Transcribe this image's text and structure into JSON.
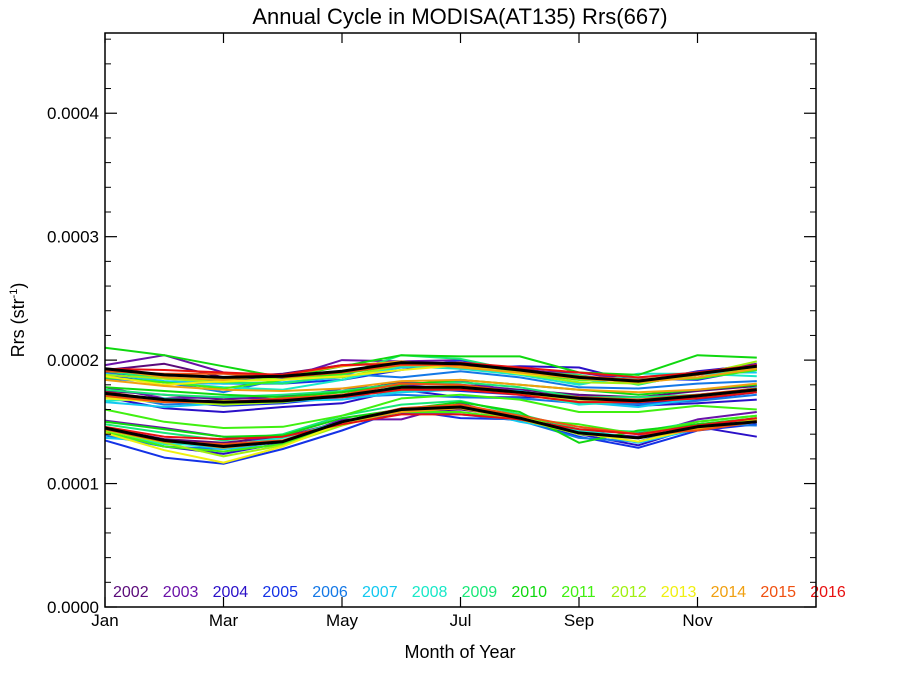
{
  "chart_data": {
    "type": "line",
    "title": "Annual Cycle in MODISA(AT135) Rrs(667)",
    "xlabel": "Month of Year",
    "ylabel": "Rrs (str",
    "ylabel_sup": "-1",
    "ylabel_close": ")",
    "x": [
      1,
      2,
      3,
      4,
      5,
      6,
      7,
      8,
      9,
      10,
      11,
      12
    ],
    "xlim": [
      1,
      13
    ],
    "ylim": [
      0.0,
      0.000465
    ],
    "x_ticks": [
      {
        "value": 1,
        "label": "Jan"
      },
      {
        "value": 3,
        "label": "Mar"
      },
      {
        "value": 5,
        "label": "May"
      },
      {
        "value": 7,
        "label": "Jul"
      },
      {
        "value": 9,
        "label": "Sep"
      },
      {
        "value": 11,
        "label": "Nov"
      }
    ],
    "y_ticks": [
      {
        "value": 0.0,
        "label": "0.0000"
      },
      {
        "value": 0.0001,
        "label": "0.0001"
      },
      {
        "value": 0.0002,
        "label": "0.0002"
      },
      {
        "value": 0.0003,
        "label": "0.0003"
      },
      {
        "value": 0.0004,
        "label": "0.0004"
      }
    ],
    "grid": false,
    "legend": "bottom",
    "series": [
      {
        "name": "2002",
        "color": "#5a0a7a",
        "values": [
          [
            0.000192,
            0.000197,
            0.000186,
            0.000189,
            0.000196,
            0.000198,
            0.000196,
            0.000193,
            0.000187,
            0.000181,
            0.000188,
            0.000194
          ],
          [
            0.000175,
            0.000172,
            0.000168,
            0.000171,
            0.000174,
            0.000182,
            0.00018,
            0.000176,
            0.000172,
            0.00017,
            0.000175,
            0.000179
          ],
          [
            0.000145,
            0.000136,
            0.000133,
            0.000138,
            0.00015,
            0.000158,
            0.00016,
            0.000154,
            0.000143,
            0.000141,
            0.000148,
            0.000152
          ]
        ]
      },
      {
        "name": "2003",
        "color": "#6a12a8",
        "values": [
          [
            0.000196,
            0.000204,
            0.00019,
            0.000185,
            0.0002,
            0.000199,
            0.0002,
            0.000191,
            0.00019,
            0.000183,
            0.00019,
            0.000197
          ],
          [
            0.000178,
            0.000169,
            0.00017,
            0.000168,
            0.000177,
            0.000179,
            0.000183,
            0.000174,
            0.000171,
            0.000167,
            0.000172,
            0.000176
          ],
          [
            0.000151,
            0.000145,
            0.000138,
            0.000134,
            0.000152,
            0.000152,
            0.000165,
            0.000152,
            0.000141,
            0.000138,
            0.000152,
            0.000158
          ]
        ]
      },
      {
        "name": "2004",
        "color": "#2a10c8",
        "values": [
          [
            0.00019,
            0.000186,
            0.000183,
            0.000187,
            0.000189,
            0.000199,
            0.000193,
            0.000195,
            0.000194,
            0.000182,
            0.000191,
            0.000196
          ],
          [
            0.00017,
            0.000161,
            0.000158,
            0.000162,
            0.000165,
            0.000176,
            0.00017,
            0.00017,
            0.00017,
            0.000163,
            0.000165,
            0.000168
          ],
          [
            0.00014,
            0.00013,
            0.000124,
            0.000133,
            0.000148,
            0.000157,
            0.000161,
            0.000156,
            0.00014,
            0.000131,
            0.000146,
            0.000138
          ]
        ]
      },
      {
        "name": "2005",
        "color": "#1432e6",
        "values": [
          [
            0.000187,
            0.000182,
            0.000181,
            0.000181,
            0.000184,
            0.000192,
            0.0002,
            0.00019,
            0.000186,
            0.000185,
            0.000184,
            0.000193
          ],
          [
            0.000172,
            0.000167,
            0.000163,
            0.000165,
            0.00017,
            0.000178,
            0.000175,
            0.000172,
            0.000168,
            0.000165,
            0.000168,
            0.000174
          ],
          [
            0.000135,
            0.000121,
            0.000116,
            0.000128,
            0.000143,
            0.00016,
            0.000153,
            0.000152,
            0.000138,
            0.000129,
            0.000143,
            0.000148
          ]
        ]
      },
      {
        "name": "2006",
        "color": "#1478e6",
        "values": [
          [
            0.000185,
            0.000182,
            0.000174,
            0.000185,
            0.000189,
            0.000186,
            0.000191,
            0.000186,
            0.000178,
            0.000177,
            0.000181,
            0.000183
          ],
          [
            0.000173,
            0.000164,
            0.000166,
            0.000166,
            0.00017,
            0.000172,
            0.00017,
            0.000169,
            0.000165,
            0.000164,
            0.000167,
            0.000172
          ],
          [
            0.000139,
            0.00013,
            0.000128,
            0.000134,
            0.000149,
            0.000158,
            0.000156,
            0.000151,
            0.000137,
            0.000134,
            0.000148,
            0.000147
          ]
        ]
      },
      {
        "name": "2007",
        "color": "#12c8f0",
        "values": [
          [
            0.000189,
            0.000183,
            0.000181,
            0.000182,
            0.000186,
            0.000194,
            0.000198,
            0.000192,
            0.000181,
            0.000186,
            0.00019,
            0.00019
          ],
          [
            0.000166,
            0.000162,
            0.000165,
            0.000167,
            0.000168,
            0.000174,
            0.000176,
            0.000175,
            0.000166,
            0.000162,
            0.000169,
            0.000178
          ],
          [
            0.000137,
            0.000134,
            0.000128,
            0.000131,
            0.000149,
            0.000159,
            0.000162,
            0.00015,
            0.000142,
            0.000133,
            0.000144,
            0.00015
          ]
        ]
      },
      {
        "name": "2008",
        "color": "#18e8c8",
        "values": [
          [
            0.000186,
            0.000182,
            0.000178,
            0.000176,
            0.000184,
            0.000195,
            0.000193,
            0.000188,
            0.00018,
            0.000189,
            0.000189,
            0.000187
          ],
          [
            0.000167,
            0.000169,
            0.000165,
            0.000166,
            0.000171,
            0.000175,
            0.000178,
            0.000174,
            0.000164,
            0.000167,
            0.00017,
            0.000176
          ],
          [
            0.000141,
            0.000132,
            0.000131,
            0.000137,
            0.00015,
            0.000158,
            0.000161,
            0.000153,
            0.000143,
            0.000137,
            0.000145,
            0.000151
          ]
        ]
      },
      {
        "name": "2009",
        "color": "#18e878",
        "values": [
          [
            0.000191,
            0.000185,
            0.000182,
            0.000181,
            0.000188,
            0.000204,
            0.000201,
            0.000191,
            0.000188,
            0.00018,
            0.00019,
            0.000192
          ],
          [
            0.000176,
            0.000172,
            0.00017,
            0.000172,
            0.000175,
            0.000181,
            0.000182,
            0.000178,
            0.00017,
            0.00017,
            0.000172,
            0.000176
          ],
          [
            0.000148,
            0.000141,
            0.000135,
            0.00014,
            0.000155,
            0.000164,
            0.000167,
            0.000156,
            0.000144,
            0.000142,
            0.00015,
            0.000155
          ]
        ]
      },
      {
        "name": "2010",
        "color": "#0fd80f",
        "values": [
          [
            0.00021,
            0.000204,
            0.000195,
            0.000186,
            0.000195,
            0.000204,
            0.000203,
            0.000203,
            0.00019,
            0.000188,
            0.000204,
            0.000202
          ],
          [
            0.000178,
            0.000175,
            0.000172,
            0.00017,
            0.000174,
            0.00018,
            0.000184,
            0.00018,
            0.000176,
            0.000172,
            0.000176,
            0.00018
          ],
          [
            0.00015,
            0.000144,
            0.000138,
            0.000139,
            0.000153,
            0.00016,
            0.000166,
            0.000158,
            0.000133,
            0.000143,
            0.000148,
            0.000153
          ]
        ]
      },
      {
        "name": "2011",
        "color": "#40f010",
        "values": [
          [
            0.000186,
            0.000182,
            0.000177,
            0.000184,
            0.000189,
            0.000196,
            0.000197,
            0.00019,
            0.000184,
            0.000184,
            0.000185,
            0.000192
          ],
          [
            0.00016,
            0.00015,
            0.000145,
            0.000146,
            0.000155,
            0.000169,
            0.000172,
            0.000168,
            0.000158,
            0.000158,
            0.000163,
            0.00016
          ],
          [
            0.000142,
            0.00013,
            0.000126,
            0.000132,
            0.00015,
            0.000158,
            0.000158,
            0.000152,
            0.000148,
            0.00014,
            0.00015,
            0.000155
          ]
        ]
      },
      {
        "name": "2012",
        "color": "#a0f010",
        "values": [
          [
            0.000188,
            0.000185,
            0.000182,
            0.000186,
            0.000186,
            0.000196,
            0.000195,
            0.000189,
            0.000182,
            0.000181,
            0.000188,
            0.000199
          ],
          [
            0.00017,
            0.000167,
            0.000164,
            0.000166,
            0.000172,
            0.000178,
            0.000177,
            0.000172,
            0.000166,
            0.000166,
            0.00017,
            0.000175
          ],
          [
            0.000143,
            0.000133,
            0.000122,
            0.000131,
            0.000147,
            0.00016,
            0.000162,
            0.000152,
            0.00014,
            0.000137,
            0.000144,
            0.000152
          ]
        ]
      },
      {
        "name": "2013",
        "color": "#f0f010",
        "values": [
          [
            0.000187,
            0.00018,
            0.000183,
            0.000184,
            0.000187,
            0.000192,
            0.000196,
            0.000189,
            0.000186,
            0.000184,
            0.000189,
            0.000194
          ],
          [
            0.000169,
            0.000166,
            0.000167,
            0.000167,
            0.000171,
            0.000177,
            0.000179,
            0.000173,
            0.000168,
            0.000167,
            0.000171,
            0.000177
          ],
          [
            0.000141,
            0.000127,
            0.000117,
            0.00013,
            0.000149,
            0.000161,
            0.000163,
            0.000154,
            0.000141,
            0.000134,
            0.000145,
            0.000151
          ]
        ]
      },
      {
        "name": "2014",
        "color": "#f0a010",
        "values": [
          [
            0.000193,
            0.000186,
            0.000184,
            0.000188,
            0.000195,
            0.000199,
            0.000194,
            0.00019,
            0.000185,
            0.000182,
            0.000186,
            0.000193
          ],
          [
            0.000184,
            0.000179,
            0.000176,
            0.000175,
            0.000177,
            0.000183,
            0.000184,
            0.00018,
            0.000176,
            0.000174,
            0.000176,
            0.000181
          ],
          [
            0.000145,
            0.000135,
            0.000129,
            0.000134,
            0.00015,
            0.000158,
            0.000161,
            0.000152,
            0.000141,
            0.000137,
            0.000144,
            0.000151
          ]
        ]
      },
      {
        "name": "2015",
        "color": "#f05010",
        "values": [
          [
            0.000191,
            0.000189,
            0.000189,
            0.000186,
            0.00019,
            0.000196,
            0.000196,
            0.000192,
            0.000187,
            0.000184,
            0.000188,
            0.000196
          ],
          [
            0.000171,
            0.000166,
            0.000166,
            0.000169,
            0.000172,
            0.000181,
            0.00018,
            0.000174,
            0.00017,
            0.000168,
            0.000172,
            0.000177
          ],
          [
            0.000144,
            0.000134,
            0.000132,
            0.000135,
            0.00015,
            0.000161,
            0.000164,
            0.000155,
            0.000146,
            0.00014,
            0.000143,
            0.00015
          ]
        ]
      },
      {
        "name": "2016",
        "color": "#e81010",
        "values": [
          [
            0.000193,
            0.000192,
            0.00019,
            0.000188,
            0.000196,
            0.000197,
            0.000198,
            0.000194,
            0.00019,
            0.000186,
            0.00019,
            0.000196
          ],
          [
            0.000174,
            0.000168,
            0.000166,
            0.000168,
            0.00017,
            0.000176,
            0.000176,
            0.000172,
            0.000166,
            0.000166,
            0.000169,
            0.000174
          ],
          [
            0.000146,
            0.000138,
            0.000136,
            0.000138,
            0.000148,
            0.000156,
            0.000156,
            0.000152,
            0.000144,
            0.00014,
            0.000147,
            0.000153
          ]
        ]
      },
      {
        "color": "#000000",
        "values": [
          [
            0.000193,
            0.000188,
            0.000186,
            0.000187,
            0.000191,
            0.000198,
            0.000197,
            0.000192,
            0.000186,
            0.000183,
            0.000189,
            0.000195
          ],
          [
            0.000173,
            0.000168,
            0.000166,
            0.000167,
            0.000171,
            0.000178,
            0.000178,
            0.000174,
            0.000169,
            0.000167,
            0.000171,
            0.000176
          ],
          [
            0.000145,
            0.000135,
            0.00013,
            0.000134,
            0.00015,
            0.00016,
            0.000162,
            0.000153,
            0.000141,
            0.000137,
            0.000146,
            0.00015
          ]
        ]
      }
    ]
  }
}
